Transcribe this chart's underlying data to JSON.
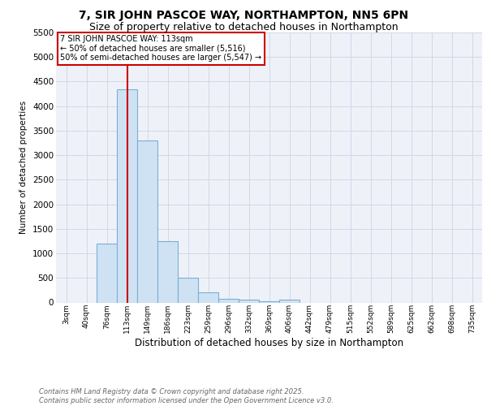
{
  "title": "7, SIR JOHN PASCOE WAY, NORTHAMPTON, NN5 6PN",
  "subtitle": "Size of property relative to detached houses in Northampton",
  "xlabel": "Distribution of detached houses by size in Northampton",
  "ylabel": "Number of detached properties",
  "categories": [
    "3sqm",
    "40sqm",
    "76sqm",
    "113sqm",
    "149sqm",
    "186sqm",
    "223sqm",
    "259sqm",
    "296sqm",
    "332sqm",
    "369sqm",
    "406sqm",
    "442sqm",
    "479sqm",
    "515sqm",
    "552sqm",
    "589sqm",
    "625sqm",
    "662sqm",
    "698sqm",
    "735sqm"
  ],
  "values": [
    0,
    0,
    1200,
    4350,
    3300,
    1250,
    500,
    200,
    80,
    50,
    30,
    50,
    0,
    0,
    0,
    0,
    0,
    0,
    0,
    0,
    0
  ],
  "bar_color": "#cfe2f3",
  "bar_edge_color": "#7bafd4",
  "red_line_index": 3,
  "annotation_text": "7 SIR JOHN PASCOE WAY: 113sqm\n← 50% of detached houses are smaller (5,516)\n50% of semi-detached houses are larger (5,547) →",
  "annotation_box_color": "#ffffff",
  "annotation_text_color": "#000000",
  "annotation_border_color": "#cc0000",
  "ylim": [
    0,
    5500
  ],
  "yticks": [
    0,
    500,
    1000,
    1500,
    2000,
    2500,
    3000,
    3500,
    4000,
    4500,
    5000,
    5500
  ],
  "grid_color": "#d0d8e8",
  "bg_color": "#eef2f8",
  "title_fontsize": 10,
  "subtitle_fontsize": 9,
  "footer_text": "Contains HM Land Registry data © Crown copyright and database right 2025.\nContains public sector information licensed under the Open Government Licence v3.0."
}
